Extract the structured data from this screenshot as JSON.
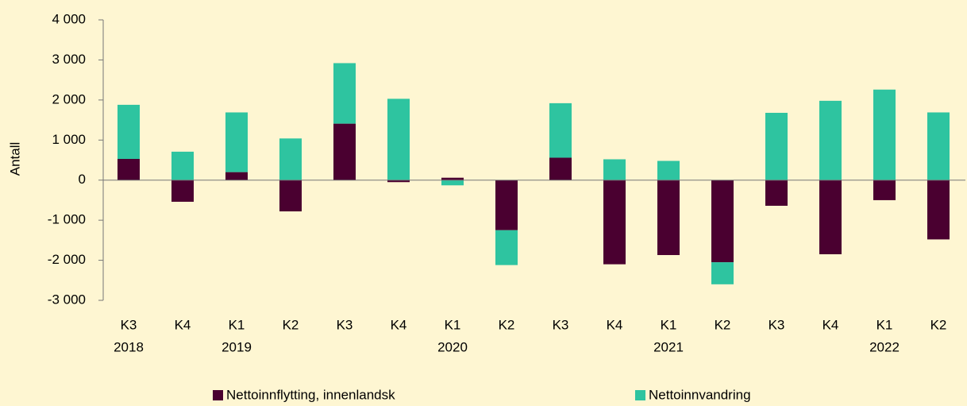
{
  "chart_data": {
    "type": "stacked_bar",
    "ylabel": "Antall",
    "categories": [
      "K3",
      "K4",
      "K1",
      "K2",
      "K3",
      "K4",
      "K1",
      "K2",
      "K3",
      "K4",
      "K1",
      "K2",
      "K3",
      "K4",
      "K1",
      "K2"
    ],
    "year_labels": [
      "2018",
      null,
      "2019",
      null,
      null,
      null,
      "2020",
      null,
      null,
      null,
      "2021",
      null,
      null,
      null,
      "2022",
      null
    ],
    "series": [
      {
        "name": "Nettoinnflytting, innenlandsk",
        "color": "#4a0030",
        "values": [
          530,
          -540,
          200,
          -780,
          1410,
          -50,
          60,
          -1250,
          560,
          -2100,
          -1870,
          -2050,
          -640,
          -1850,
          -500,
          -1480
        ]
      },
      {
        "name": "Nettoinnvandring",
        "color": "#2ec4a0",
        "values": [
          1350,
          710,
          1490,
          1040,
          1510,
          2030,
          -130,
          -870,
          1360,
          520,
          480,
          -550,
          1680,
          1980,
          2260,
          1690
        ]
      }
    ],
    "ylim": [
      -3000,
      4000
    ],
    "yticks": [
      {
        "value": 4000,
        "label": "4 000"
      },
      {
        "value": 3000,
        "label": "3 000"
      },
      {
        "value": 2000,
        "label": "2 000"
      },
      {
        "value": 1000,
        "label": "1 000"
      },
      0,
      {
        "value": -1000,
        "label": "-1 000"
      },
      {
        "value": -2000,
        "label": "-2 000"
      },
      {
        "value": -3000,
        "label": "-3 000"
      }
    ]
  }
}
